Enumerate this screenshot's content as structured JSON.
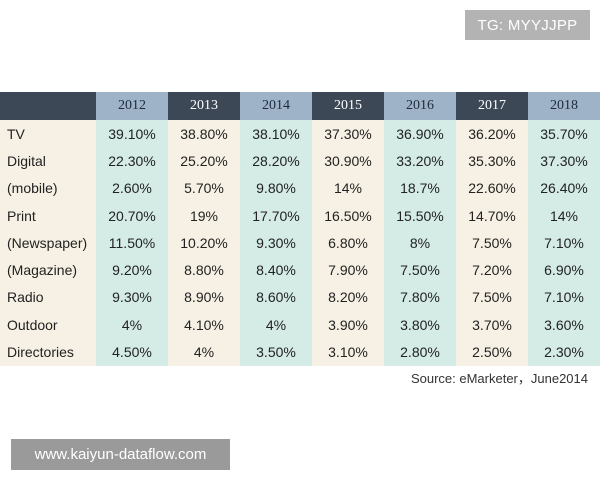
{
  "badge": {
    "text": "TG: MYYJJPP"
  },
  "table": {
    "years": [
      "2012",
      "2013",
      "2014",
      "2015",
      "2016",
      "2017",
      "2018"
    ],
    "rows": [
      {
        "label": "TV",
        "values": [
          "39.10%",
          "38.80%",
          "38.10%",
          "37.30%",
          "36.90%",
          "36.20%",
          "35.70%"
        ]
      },
      {
        "label": "Digital",
        "values": [
          "22.30%",
          "25.20%",
          "28.20%",
          "30.90%",
          "33.20%",
          "35.30%",
          "37.30%"
        ]
      },
      {
        "label": "(mobile)",
        "values": [
          "2.60%",
          "5.70%",
          "9.80%",
          "14%",
          "18.7%",
          "22.60%",
          "26.40%"
        ]
      },
      {
        "label": "Print",
        "values": [
          "20.70%",
          "19%",
          "17.70%",
          "16.50%",
          "15.50%",
          "14.70%",
          "14%"
        ]
      },
      {
        "label": "(Newspaper)",
        "values": [
          "11.50%",
          "10.20%",
          "9.30%",
          "6.80%",
          "8%",
          "7.50%",
          "7.10%"
        ]
      },
      {
        "label": "(Magazine)",
        "values": [
          "9.20%",
          "8.80%",
          "8.40%",
          "7.90%",
          "7.50%",
          "7.20%",
          "6.90%"
        ]
      },
      {
        "label": "Radio",
        "values": [
          "9.30%",
          "8.90%",
          "8.60%",
          "8.20%",
          "7.80%",
          "7.50%",
          "7.10%"
        ]
      },
      {
        "label": "Outdoor",
        "values": [
          "4%",
          "4.10%",
          "4%",
          "3.90%",
          "3.80%",
          "3.70%",
          "3.60%"
        ]
      },
      {
        "label": "Directories",
        "values": [
          "4.50%",
          "4%",
          "3.50%",
          "3.10%",
          "2.80%",
          "2.50%",
          "2.30%"
        ]
      }
    ]
  },
  "source": {
    "text": "Source: eMarketer，June2014"
  },
  "watermark": {
    "text": "www.kaiyun-dataflow.com"
  }
}
